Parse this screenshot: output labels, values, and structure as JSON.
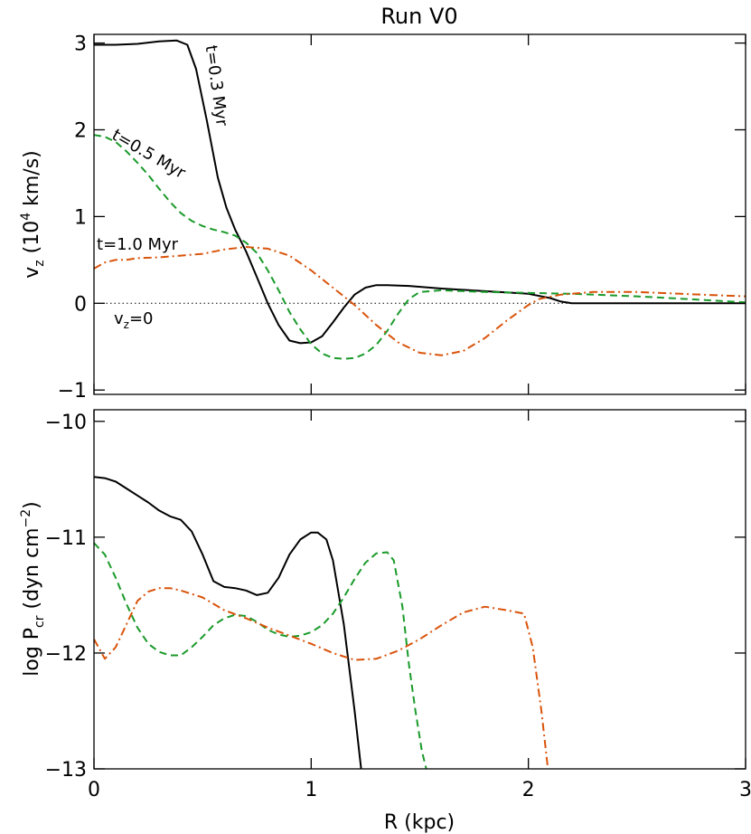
{
  "chart_data": [
    {
      "type": "line",
      "title": "Run V0",
      "ylabel": {
        "base": "v",
        "sub": "z",
        "pre": " (10",
        "sup": "4",
        "post": " km/s)"
      },
      "xlim": [
        0,
        3
      ],
      "ylim": [
        -1.05,
        3.1
      ],
      "yticks": [
        -1,
        0,
        1,
        2,
        3
      ],
      "yticklabels": [
        "−1",
        "0",
        "1",
        "2",
        "3"
      ],
      "xticks": [
        0,
        1,
        2,
        3
      ],
      "reference_line": {
        "y": 0,
        "label_base": "v",
        "label_sub": "z",
        "label_post": "=0"
      },
      "series": [
        {
          "name": "t=0.3 Myr",
          "color": "#000000",
          "dash": "solid",
          "points": [
            [
              0,
              2.98
            ],
            [
              0.1,
              2.98
            ],
            [
              0.2,
              2.99
            ],
            [
              0.3,
              3.02
            ],
            [
              0.38,
              3.03
            ],
            [
              0.43,
              2.98
            ],
            [
              0.47,
              2.7
            ],
            [
              0.52,
              2.1
            ],
            [
              0.57,
              1.45
            ],
            [
              0.61,
              1.1
            ],
            [
              0.65,
              0.85
            ],
            [
              0.7,
              0.6
            ],
            [
              0.75,
              0.3
            ],
            [
              0.8,
              0.0
            ],
            [
              0.85,
              -0.25
            ],
            [
              0.9,
              -0.43
            ],
            [
              0.95,
              -0.46
            ],
            [
              1.0,
              -0.45
            ],
            [
              1.05,
              -0.38
            ],
            [
              1.1,
              -0.22
            ],
            [
              1.15,
              -0.05
            ],
            [
              1.2,
              0.1
            ],
            [
              1.25,
              0.18
            ],
            [
              1.3,
              0.21
            ],
            [
              1.35,
              0.21
            ],
            [
              1.45,
              0.2
            ],
            [
              1.6,
              0.17
            ],
            [
              1.8,
              0.14
            ],
            [
              2.0,
              0.11
            ],
            [
              2.1,
              0.06
            ],
            [
              2.15,
              0.02
            ],
            [
              2.2,
              0.0
            ],
            [
              2.5,
              0.0
            ],
            [
              3.0,
              0.0
            ]
          ]
        },
        {
          "name": "t=0.5 Myr",
          "color": "#1a9a2a",
          "dash": "dashed",
          "points": [
            [
              0,
              1.94
            ],
            [
              0.05,
              1.92
            ],
            [
              0.1,
              1.86
            ],
            [
              0.15,
              1.75
            ],
            [
              0.2,
              1.62
            ],
            [
              0.25,
              1.48
            ],
            [
              0.3,
              1.32
            ],
            [
              0.35,
              1.17
            ],
            [
              0.4,
              1.04
            ],
            [
              0.45,
              0.95
            ],
            [
              0.5,
              0.89
            ],
            [
              0.55,
              0.85
            ],
            [
              0.6,
              0.82
            ],
            [
              0.65,
              0.78
            ],
            [
              0.7,
              0.7
            ],
            [
              0.75,
              0.58
            ],
            [
              0.8,
              0.38
            ],
            [
              0.85,
              0.15
            ],
            [
              0.9,
              -0.1
            ],
            [
              0.95,
              -0.3
            ],
            [
              1.0,
              -0.47
            ],
            [
              1.05,
              -0.58
            ],
            [
              1.1,
              -0.63
            ],
            [
              1.15,
              -0.64
            ],
            [
              1.2,
              -0.63
            ],
            [
              1.25,
              -0.58
            ],
            [
              1.3,
              -0.48
            ],
            [
              1.35,
              -0.32
            ],
            [
              1.4,
              -0.12
            ],
            [
              1.45,
              0.05
            ],
            [
              1.5,
              0.13
            ],
            [
              1.6,
              0.15
            ],
            [
              1.8,
              0.13
            ],
            [
              2.0,
              0.12
            ],
            [
              2.2,
              0.11
            ],
            [
              2.5,
              0.08
            ],
            [
              2.8,
              0.04
            ],
            [
              3.0,
              0.01
            ]
          ]
        },
        {
          "name": "t=1.0 Myr",
          "color": "#d9530a",
          "dash": "dashdot",
          "points": [
            [
              0,
              0.4
            ],
            [
              0.05,
              0.47
            ],
            [
              0.1,
              0.5
            ],
            [
              0.15,
              0.5
            ],
            [
              0.2,
              0.52
            ],
            [
              0.3,
              0.53
            ],
            [
              0.4,
              0.55
            ],
            [
              0.5,
              0.57
            ],
            [
              0.6,
              0.62
            ],
            [
              0.7,
              0.65
            ],
            [
              0.8,
              0.63
            ],
            [
              0.9,
              0.55
            ],
            [
              1.0,
              0.38
            ],
            [
              1.1,
              0.18
            ],
            [
              1.2,
              -0.02
            ],
            [
              1.3,
              -0.25
            ],
            [
              1.4,
              -0.45
            ],
            [
              1.5,
              -0.57
            ],
            [
              1.6,
              -0.6
            ],
            [
              1.7,
              -0.55
            ],
            [
              1.8,
              -0.4
            ],
            [
              1.9,
              -0.2
            ],
            [
              2.0,
              -0.02
            ],
            [
              2.05,
              0.05
            ],
            [
              2.15,
              0.1
            ],
            [
              2.3,
              0.13
            ],
            [
              2.5,
              0.13
            ],
            [
              2.7,
              0.11
            ],
            [
              2.9,
              0.09
            ],
            [
              3.0,
              0.08
            ]
          ]
        }
      ],
      "annotations": [
        {
          "text": "t=0.3 Myr",
          "x": 0.54,
          "y": 2.5,
          "rotate": 82
        },
        {
          "text": "t=0.5 Myr",
          "x": 0.24,
          "y": 1.67,
          "rotate": 30
        },
        {
          "text": "t=1.0 Myr",
          "x": 0.2,
          "y": 0.62,
          "rotate": 0
        }
      ]
    },
    {
      "type": "line",
      "xlabel": "R (kpc)",
      "ylabel": {
        "base": "log P",
        "sub": "cr",
        "pre": " (dyn cm",
        "sup": "−2",
        "post": ")"
      },
      "xlim": [
        0,
        3
      ],
      "ylim": [
        -13,
        -9.9
      ],
      "yticks": [
        -13,
        -12,
        -11,
        -10
      ],
      "yticklabels": [
        "−13",
        "−12",
        "−11",
        "−10"
      ],
      "xticks": [
        0,
        1,
        2,
        3
      ],
      "xticklabels": [
        "0",
        "1",
        "2",
        "3"
      ],
      "series": [
        {
          "name": "t=0.3 Myr",
          "color": "#000000",
          "dash": "solid",
          "points": [
            [
              0,
              -10.48
            ],
            [
              0.05,
              -10.49
            ],
            [
              0.1,
              -10.52
            ],
            [
              0.15,
              -10.58
            ],
            [
              0.2,
              -10.64
            ],
            [
              0.25,
              -10.7
            ],
            [
              0.3,
              -10.77
            ],
            [
              0.35,
              -10.82
            ],
            [
              0.4,
              -10.85
            ],
            [
              0.45,
              -10.95
            ],
            [
              0.5,
              -11.15
            ],
            [
              0.55,
              -11.38
            ],
            [
              0.6,
              -11.43
            ],
            [
              0.65,
              -11.44
            ],
            [
              0.7,
              -11.46
            ],
            [
              0.75,
              -11.5
            ],
            [
              0.8,
              -11.48
            ],
            [
              0.85,
              -11.35
            ],
            [
              0.9,
              -11.15
            ],
            [
              0.95,
              -11.02
            ],
            [
              1.0,
              -10.96
            ],
            [
              1.03,
              -10.96
            ],
            [
              1.07,
              -11.02
            ],
            [
              1.1,
              -11.2
            ],
            [
              1.15,
              -11.75
            ],
            [
              1.2,
              -12.5
            ],
            [
              1.23,
              -13.0
            ]
          ]
        },
        {
          "name": "t=0.5 Myr",
          "color": "#1a9a2a",
          "dash": "dashed",
          "points": [
            [
              0,
              -11.05
            ],
            [
              0.05,
              -11.15
            ],
            [
              0.1,
              -11.35
            ],
            [
              0.15,
              -11.58
            ],
            [
              0.2,
              -11.78
            ],
            [
              0.25,
              -11.92
            ],
            [
              0.3,
              -11.99
            ],
            [
              0.35,
              -12.02
            ],
            [
              0.4,
              -12.02
            ],
            [
              0.45,
              -11.95
            ],
            [
              0.5,
              -11.86
            ],
            [
              0.55,
              -11.76
            ],
            [
              0.6,
              -11.7
            ],
            [
              0.65,
              -11.67
            ],
            [
              0.7,
              -11.68
            ],
            [
              0.75,
              -11.73
            ],
            [
              0.8,
              -11.8
            ],
            [
              0.85,
              -11.84
            ],
            [
              0.9,
              -11.86
            ],
            [
              0.95,
              -11.85
            ],
            [
              1.0,
              -11.82
            ],
            [
              1.05,
              -11.76
            ],
            [
              1.1,
              -11.66
            ],
            [
              1.15,
              -11.52
            ],
            [
              1.2,
              -11.36
            ],
            [
              1.25,
              -11.22
            ],
            [
              1.3,
              -11.14
            ],
            [
              1.35,
              -11.13
            ],
            [
              1.38,
              -11.2
            ],
            [
              1.42,
              -11.6
            ],
            [
              1.45,
              -12.1
            ],
            [
              1.48,
              -12.5
            ],
            [
              1.51,
              -12.85
            ],
            [
              1.53,
              -13.0
            ]
          ]
        },
        {
          "name": "t=1.0 Myr",
          "color": "#d9530a",
          "dash": "dashdot",
          "points": [
            [
              0,
              -11.88
            ],
            [
              0.05,
              -12.05
            ],
            [
              0.1,
              -11.95
            ],
            [
              0.15,
              -11.75
            ],
            [
              0.2,
              -11.55
            ],
            [
              0.25,
              -11.47
            ],
            [
              0.3,
              -11.44
            ],
            [
              0.35,
              -11.44
            ],
            [
              0.4,
              -11.46
            ],
            [
              0.5,
              -11.52
            ],
            [
              0.6,
              -11.63
            ],
            [
              0.7,
              -11.7
            ],
            [
              0.8,
              -11.78
            ],
            [
              0.9,
              -11.85
            ],
            [
              1.0,
              -11.92
            ],
            [
              1.1,
              -12.0
            ],
            [
              1.2,
              -12.06
            ],
            [
              1.3,
              -12.05
            ],
            [
              1.4,
              -11.98
            ],
            [
              1.5,
              -11.88
            ],
            [
              1.6,
              -11.76
            ],
            [
              1.7,
              -11.65
            ],
            [
              1.8,
              -11.6
            ],
            [
              1.9,
              -11.63
            ],
            [
              1.98,
              -11.66
            ],
            [
              2.02,
              -11.95
            ],
            [
              2.06,
              -12.5
            ],
            [
              2.09,
              -13.0
            ]
          ]
        }
      ]
    }
  ]
}
